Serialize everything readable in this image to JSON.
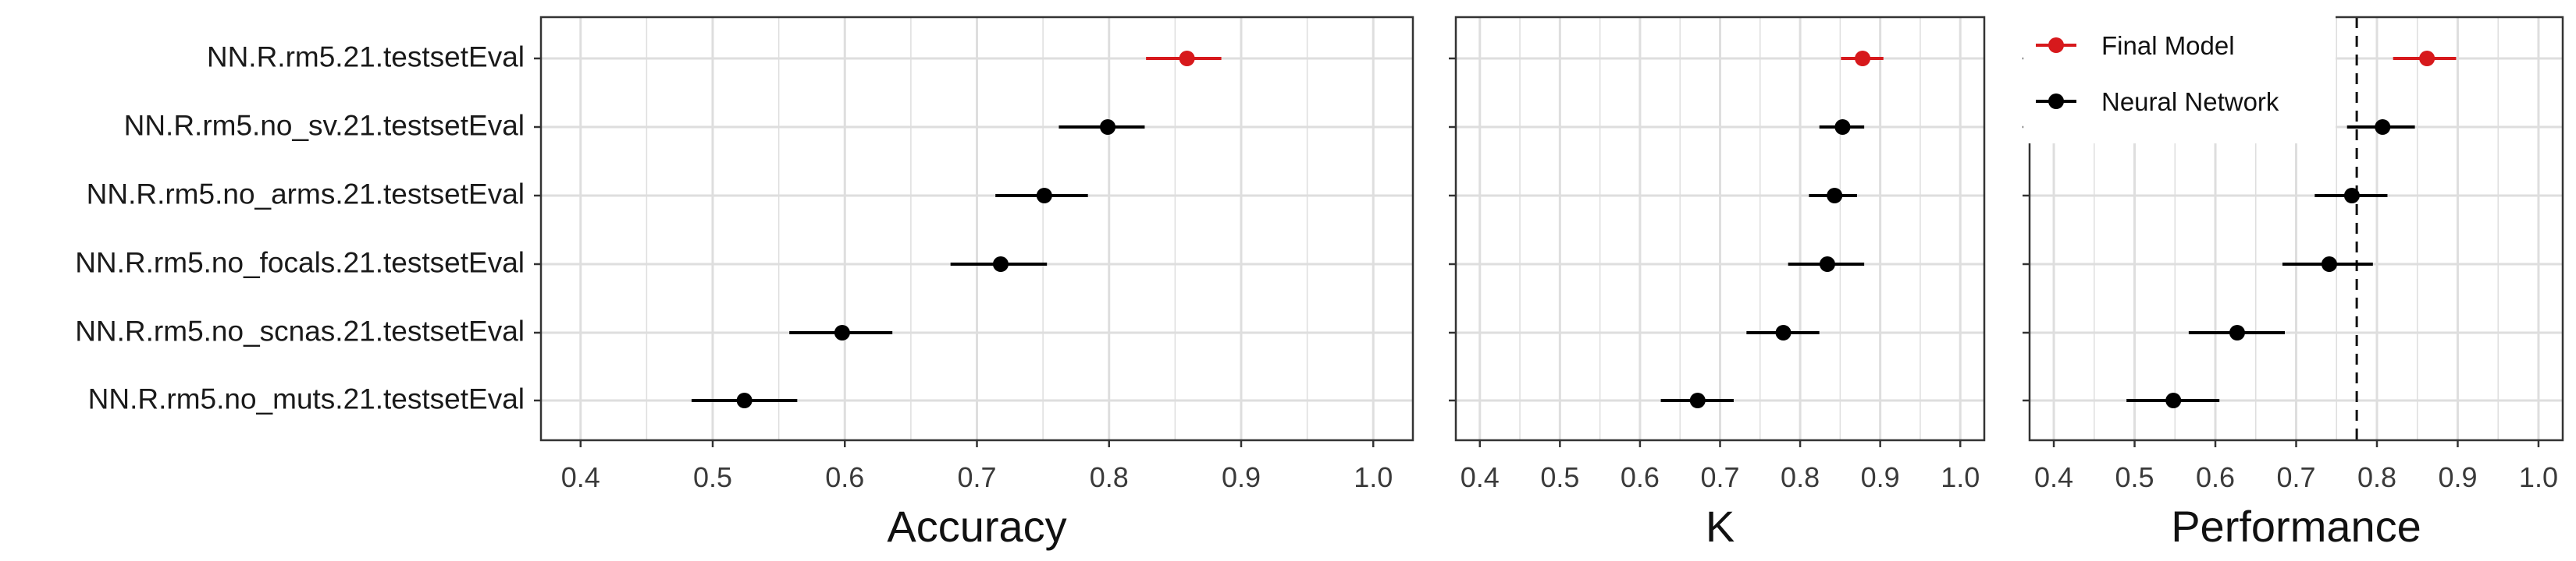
{
  "colors": {
    "final_model": "#d7191c",
    "neural_network": "#000000",
    "grid": "#dedede",
    "panel_border": "#333333"
  },
  "legend": {
    "placement": "top-left of third panel",
    "items": [
      {
        "label": "Final Model",
        "color": "#d7191c"
      },
      {
        "label": "Neural Network",
        "color": "#000000"
      }
    ]
  },
  "chart_data": {
    "type": "scatter",
    "subtype": "forest plot (point with horizontal error bars)",
    "categories": [
      "NN.R.rm5.21.testsetEval",
      "NN.R.rm5.no_sv.21.testsetEval",
      "NN.R.rm5.no_arms.21.testsetEval",
      "NN.R.rm5.no_focals.21.testsetEval",
      "NN.R.rm5.no_scnas.21.testsetEval",
      "NN.R.rm5.no_muts.21.testsetEval"
    ],
    "groups": [
      "Final Model",
      "Neural Network",
      "Neural Network",
      "Neural Network",
      "Neural Network",
      "Neural Network"
    ],
    "grid": true,
    "panels": [
      {
        "xlabel": "Accuracy",
        "xlim": [
          0.37,
          1.03
        ],
        "xticks": [
          "0.4",
          "0.5",
          "0.6",
          "0.7",
          "0.8",
          "0.9",
          "1.0"
        ],
        "values": [
          0.859,
          0.799,
          0.751,
          0.718,
          0.598,
          0.524
        ],
        "lower": [
          0.828,
          0.762,
          0.714,
          0.68,
          0.558,
          0.484
        ],
        "upper": [
          0.885,
          0.827,
          0.784,
          0.753,
          0.636,
          0.564
        ]
      },
      {
        "xlabel": "K",
        "xlim": [
          0.37,
          1.03
        ],
        "xticks": [
          "0.4",
          "0.5",
          "0.6",
          "0.7",
          "0.8",
          "0.9",
          "1.0"
        ],
        "values": [
          0.878,
          0.853,
          0.843,
          0.834,
          0.779,
          0.672
        ],
        "lower": [
          0.851,
          0.824,
          0.811,
          0.785,
          0.733,
          0.626
        ],
        "upper": [
          0.904,
          0.88,
          0.871,
          0.88,
          0.824,
          0.717
        ]
      },
      {
        "xlabel": "Performance",
        "xlim": [
          0.37,
          1.03
        ],
        "xticks": [
          "0.4",
          "0.5",
          "0.6",
          "0.7",
          "0.8",
          "0.9",
          "1.0"
        ],
        "values": [
          0.862,
          0.807,
          0.769,
          0.741,
          0.627,
          0.548
        ],
        "lower": [
          0.82,
          0.763,
          0.723,
          0.683,
          0.567,
          0.49
        ],
        "upper": [
          0.898,
          0.847,
          0.813,
          0.795,
          0.686,
          0.605
        ],
        "reference_line": 0.775
      }
    ]
  }
}
